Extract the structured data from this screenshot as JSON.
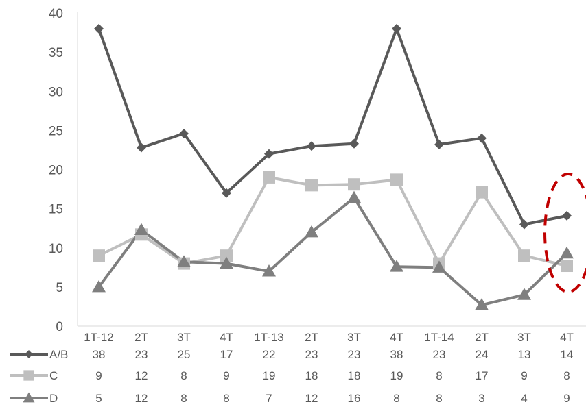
{
  "chart_data": {
    "type": "line",
    "categories": [
      "1T-12",
      "2T",
      "3T",
      "4T",
      "1T-13",
      "2T",
      "3T",
      "4T",
      "1T-14",
      "2T",
      "3T",
      "4T"
    ],
    "ylim": [
      0,
      40
    ],
    "yticks": [
      0,
      5,
      10,
      15,
      20,
      25,
      30,
      35,
      40
    ],
    "grid": false,
    "legend_placement": "data table below plot",
    "series": [
      {
        "name": "A/B",
        "marker": "diamond",
        "color": "#595959",
        "values": [
          38.0,
          22.8,
          24.6,
          17.0,
          22.0,
          23.0,
          23.3,
          38.0,
          23.2,
          24.0,
          13.0,
          14.1
        ],
        "table_values": [
          "38",
          "23",
          "25",
          "17",
          "22",
          "23",
          "23",
          "38",
          "23",
          "24",
          "13",
          "14"
        ]
      },
      {
        "name": "C",
        "marker": "square",
        "color": "#bfbfbf",
        "values": [
          9.0,
          11.7,
          8.0,
          9.0,
          19.0,
          18.0,
          18.1,
          18.7,
          8.0,
          17.1,
          9.0,
          7.7
        ],
        "table_values": [
          "9",
          "12",
          "8",
          "9",
          "19",
          "18",
          "18",
          "19",
          "8",
          "17",
          "9",
          "8"
        ]
      },
      {
        "name": "D",
        "marker": "triangle",
        "color": "#7f7f7f",
        "values": [
          5.0,
          12.3,
          8.2,
          8.0,
          7.0,
          12.0,
          16.4,
          7.6,
          7.5,
          2.7,
          4.0,
          9.3
        ],
        "table_values": [
          "5",
          "12",
          "8",
          "8",
          "7",
          "12",
          "16",
          "8",
          "8",
          "3",
          "4",
          "9"
        ]
      }
    ],
    "highlight": {
      "shape": "dashed-ellipse",
      "color": "#c00000",
      "category_index": 11
    }
  }
}
